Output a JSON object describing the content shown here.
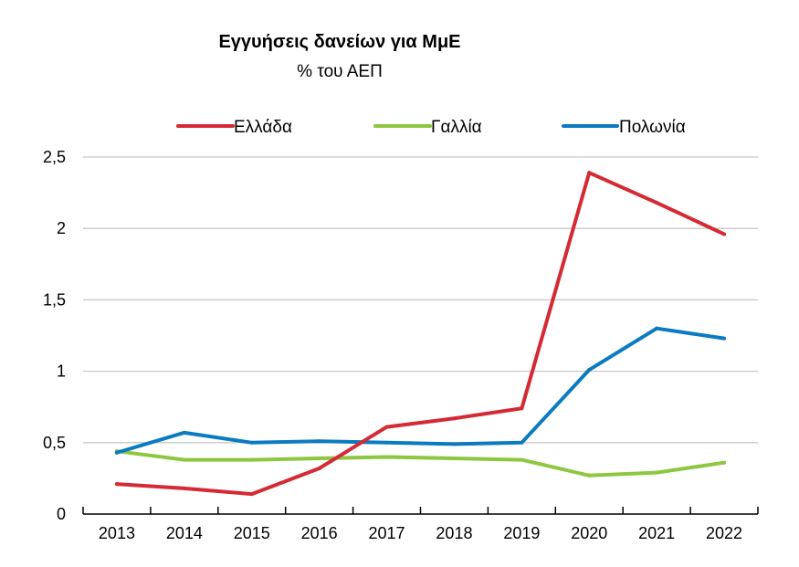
{
  "chart_data": {
    "type": "line",
    "title": "Εγγυήσεις δανείων για ΜμΕ",
    "subtitle": "% του ΑΕΠ",
    "xlabel": "",
    "ylabel": "",
    "categories": [
      "2013",
      "2014",
      "2015",
      "2016",
      "2017",
      "2018",
      "2019",
      "2020",
      "2021",
      "2022"
    ],
    "ylim": [
      0,
      2.5
    ],
    "yticks": [
      0,
      0.5,
      1,
      1.5,
      2,
      2.5
    ],
    "ytick_labels": [
      "0",
      "0,5",
      "1",
      "1,5",
      "2",
      "2,5"
    ],
    "grid": "horizontal",
    "legend_position": "top",
    "series": [
      {
        "name": "Ελλάδα",
        "color": "#d42a34",
        "values": [
          0.21,
          0.18,
          0.14,
          0.32,
          0.61,
          0.67,
          0.74,
          2.39,
          2.18,
          1.96
        ]
      },
      {
        "name": "Γαλλία",
        "color": "#8dc63f",
        "values": [
          0.44,
          0.38,
          0.38,
          0.39,
          0.4,
          0.39,
          0.38,
          0.27,
          0.29,
          0.36
        ]
      },
      {
        "name": "Πολωνία",
        "color": "#0b7bc1",
        "values": [
          0.43,
          0.57,
          0.5,
          0.51,
          0.5,
          0.49,
          0.5,
          1.01,
          1.3,
          1.23
        ]
      }
    ]
  }
}
